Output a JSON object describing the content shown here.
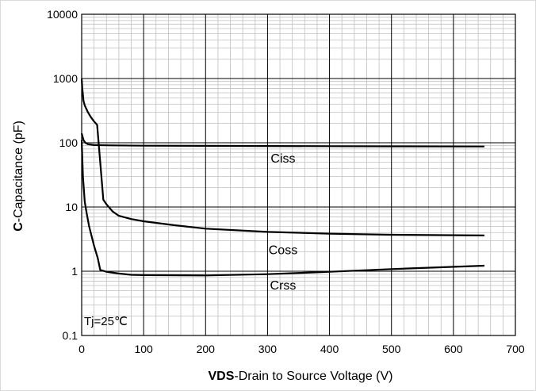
{
  "chart_data": {
    "type": "line",
    "title": "",
    "xlabel_bold": "VDS",
    "xlabel_rest": "-Drain to Source Voltage (V)",
    "ylabel_bold": "C",
    "ylabel_rest": "-Capacitance (pF)",
    "xlim": [
      0,
      700
    ],
    "ylim": [
      0.1,
      10000
    ],
    "y_scale": "log",
    "x_ticks": [
      "0",
      "100",
      "200",
      "300",
      "400",
      "500",
      "600",
      "700"
    ],
    "y_ticks": [
      "0.1",
      "1",
      "10",
      "100",
      "1000",
      "10000"
    ],
    "grid": true,
    "annotation": "Tj=25℃",
    "series": [
      {
        "name": "Ciss",
        "x": [
          0,
          3,
          6,
          10,
          20,
          50,
          100,
          200,
          300,
          400,
          500,
          650
        ],
        "y": [
          140,
          110,
          100,
          95,
          92,
          91,
          90,
          89.5,
          89,
          88.5,
          88,
          87.5
        ]
      },
      {
        "name": "Coss",
        "x": [
          0,
          1,
          3,
          5,
          10,
          15,
          20,
          25,
          30,
          35,
          40,
          50,
          60,
          80,
          100,
          150,
          200,
          300,
          400,
          500,
          650
        ],
        "y": [
          1000,
          700,
          450,
          380,
          300,
          250,
          215,
          190,
          50,
          13,
          11,
          8.5,
          7.3,
          6.5,
          6.0,
          5.2,
          4.6,
          4.1,
          3.85,
          3.7,
          3.6
        ]
      },
      {
        "name": "Crss",
        "x": [
          0,
          2,
          5,
          8,
          12,
          20,
          26,
          30,
          40,
          60,
          80,
          100,
          200,
          300,
          400,
          500,
          650
        ],
        "y": [
          110,
          30,
          12,
          8,
          5,
          2.5,
          1.6,
          1.05,
          0.98,
          0.92,
          0.88,
          0.87,
          0.86,
          0.9,
          0.98,
          1.08,
          1.22
        ]
      }
    ],
    "label_positions": [
      {
        "name": "Ciss",
        "x": 325,
        "y": 58
      },
      {
        "name": "Coss",
        "x": 325,
        "y": 2.2
      },
      {
        "name": "Crss",
        "x": 325,
        "y": 0.62
      }
    ]
  }
}
